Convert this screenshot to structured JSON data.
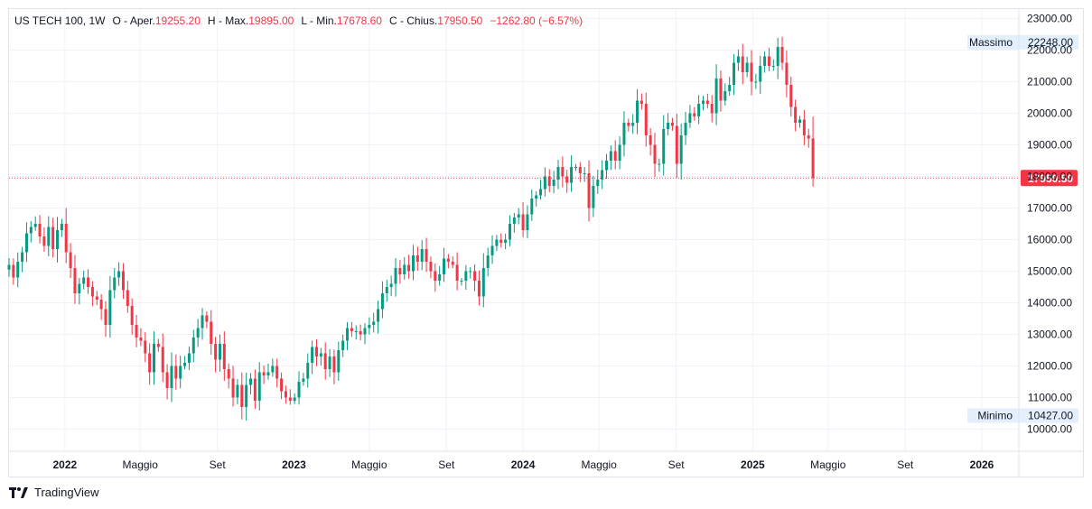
{
  "header": {
    "symbol": "US TECH 100, 1W",
    "open_label": "O - Aper.",
    "open_value": "19255.20",
    "high_label": "H - Max.",
    "high_value": "19895.00",
    "low_label": "L - Min.",
    "low_value": "17678.60",
    "close_label": "C - Chius.",
    "close_value": "17950.50",
    "change": "−1262.80 (−6.57%)"
  },
  "footer": {
    "brand": "TradingView"
  },
  "colors": {
    "up": "#089981",
    "down": "#f23645",
    "grid": "#f0f3fa",
    "label_bg": "#e3effd"
  },
  "chart_data": {
    "type": "candlestick",
    "ylim": [
      9300,
      23300
    ],
    "y_ticks": [
      "23000.00",
      "22000.00",
      "21000.00",
      "20000.00",
      "19000.00",
      "18000.00",
      "17000.00",
      "16000.00",
      "15000.00",
      "14000.00",
      "13000.00",
      "12000.00",
      "11000.00",
      "10000.00"
    ],
    "x_ticks": [
      {
        "label": "2022",
        "date": "2022-01-01",
        "bold": true
      },
      {
        "label": "Maggio",
        "date": "2022-05-01",
        "bold": false
      },
      {
        "label": "Set",
        "date": "2022-09-01",
        "bold": false
      },
      {
        "label": "2023",
        "date": "2023-01-01",
        "bold": true
      },
      {
        "label": "Maggio",
        "date": "2023-05-01",
        "bold": false
      },
      {
        "label": "Set",
        "date": "2023-09-01",
        "bold": false
      },
      {
        "label": "2024",
        "date": "2024-01-01",
        "bold": true
      },
      {
        "label": "Maggio",
        "date": "2024-05-01",
        "bold": false
      },
      {
        "label": "Set",
        "date": "2024-09-01",
        "bold": false
      },
      {
        "label": "2025",
        "date": "2025-01-01",
        "bold": true
      },
      {
        "label": "Maggio",
        "date": "2025-05-01",
        "bold": false
      },
      {
        "label": "Set",
        "date": "2025-09-01",
        "bold": false
      },
      {
        "label": "2026",
        "date": "2026-01-01",
        "bold": true
      }
    ],
    "last_price": {
      "value": 17950.5,
      "label": "17950.50"
    },
    "max_marker": {
      "label": "Massimo",
      "value_label": "22248.00",
      "value": 22248
    },
    "min_marker": {
      "label": "Minimo",
      "value_label": "10427.00",
      "value": 10427
    },
    "series_weekly_close": [
      {
        "date": "2021-10-04",
        "close": 15200
      },
      {
        "date": "2021-10-11",
        "close": 14800
      },
      {
        "date": "2021-10-18",
        "close": 15300
      },
      {
        "date": "2021-10-25",
        "close": 15600
      },
      {
        "date": "2021-11-01",
        "close": 16200
      },
      {
        "date": "2021-11-08",
        "close": 16400
      },
      {
        "date": "2021-11-15",
        "close": 16500
      },
      {
        "date": "2021-11-22",
        "close": 16100
      },
      {
        "date": "2021-11-29",
        "close": 15800
      },
      {
        "date": "2021-12-06",
        "close": 16400
      },
      {
        "date": "2021-12-13",
        "close": 15700
      },
      {
        "date": "2021-12-20",
        "close": 16300
      },
      {
        "date": "2021-12-27",
        "close": 16500
      },
      {
        "date": "2022-01-03",
        "close": 15600
      },
      {
        "date": "2022-01-10",
        "close": 15100
      },
      {
        "date": "2022-01-17",
        "close": 14300
      },
      {
        "date": "2022-01-24",
        "close": 14600
      },
      {
        "date": "2022-01-31",
        "close": 14800
      },
      {
        "date": "2022-02-07",
        "close": 14500
      },
      {
        "date": "2022-02-14",
        "close": 14200
      },
      {
        "date": "2022-02-21",
        "close": 14100
      },
      {
        "date": "2022-02-28",
        "close": 13800
      },
      {
        "date": "2022-03-07",
        "close": 13300
      },
      {
        "date": "2022-03-14",
        "close": 14400
      },
      {
        "date": "2022-03-21",
        "close": 14800
      },
      {
        "date": "2022-03-28",
        "close": 15000
      },
      {
        "date": "2022-04-04",
        "close": 14400
      },
      {
        "date": "2022-04-11",
        "close": 13900
      },
      {
        "date": "2022-04-18",
        "close": 13300
      },
      {
        "date": "2022-04-25",
        "close": 12900
      },
      {
        "date": "2022-05-02",
        "close": 12800
      },
      {
        "date": "2022-05-09",
        "close": 12400
      },
      {
        "date": "2022-05-16",
        "close": 11800
      },
      {
        "date": "2022-05-23",
        "close": 12700
      },
      {
        "date": "2022-05-30",
        "close": 12600
      },
      {
        "date": "2022-06-06",
        "close": 11800
      },
      {
        "date": "2022-06-13",
        "close": 11300
      },
      {
        "date": "2022-06-20",
        "close": 12000
      },
      {
        "date": "2022-06-27",
        "close": 11600
      },
      {
        "date": "2022-07-04",
        "close": 12000
      },
      {
        "date": "2022-07-11",
        "close": 12100
      },
      {
        "date": "2022-07-18",
        "close": 12400
      },
      {
        "date": "2022-07-25",
        "close": 12900
      },
      {
        "date": "2022-08-01",
        "close": 13200
      },
      {
        "date": "2022-08-08",
        "close": 13600
      },
      {
        "date": "2022-08-15",
        "close": 13400
      },
      {
        "date": "2022-08-22",
        "close": 12700
      },
      {
        "date": "2022-08-29",
        "close": 12200
      },
      {
        "date": "2022-09-05",
        "close": 12700
      },
      {
        "date": "2022-09-12",
        "close": 11900
      },
      {
        "date": "2022-09-19",
        "close": 11600
      },
      {
        "date": "2022-09-26",
        "close": 11000
      },
      {
        "date": "2022-10-03",
        "close": 11400
      },
      {
        "date": "2022-10-10",
        "close": 10700
      },
      {
        "date": "2022-10-17",
        "close": 11400
      },
      {
        "date": "2022-10-24",
        "close": 11600
      },
      {
        "date": "2022-10-31",
        "close": 10900
      },
      {
        "date": "2022-11-07",
        "close": 11800
      },
      {
        "date": "2022-11-14",
        "close": 11700
      },
      {
        "date": "2022-11-21",
        "close": 11800
      },
      {
        "date": "2022-11-28",
        "close": 12000
      },
      {
        "date": "2022-12-05",
        "close": 11600
      },
      {
        "date": "2022-12-12",
        "close": 11200
      },
      {
        "date": "2022-12-19",
        "close": 11000
      },
      {
        "date": "2022-12-26",
        "close": 10900
      },
      {
        "date": "2023-01-02",
        "close": 11000
      },
      {
        "date": "2023-01-09",
        "close": 11500
      },
      {
        "date": "2023-01-16",
        "close": 11600
      },
      {
        "date": "2023-01-23",
        "close": 12100
      },
      {
        "date": "2023-01-30",
        "close": 12600
      },
      {
        "date": "2023-02-06",
        "close": 12300
      },
      {
        "date": "2023-02-13",
        "close": 12400
      },
      {
        "date": "2023-02-20",
        "close": 11900
      },
      {
        "date": "2023-02-27",
        "close": 12300
      },
      {
        "date": "2023-03-06",
        "close": 11800
      },
      {
        "date": "2023-03-13",
        "close": 12500
      },
      {
        "date": "2023-03-20",
        "close": 12800
      },
      {
        "date": "2023-03-27",
        "close": 13200
      },
      {
        "date": "2023-04-03",
        "close": 13100
      },
      {
        "date": "2023-04-10",
        "close": 13100
      },
      {
        "date": "2023-04-17",
        "close": 13000
      },
      {
        "date": "2023-04-24",
        "close": 13200
      },
      {
        "date": "2023-05-01",
        "close": 13300
      },
      {
        "date": "2023-05-08",
        "close": 13400
      },
      {
        "date": "2023-05-15",
        "close": 13800
      },
      {
        "date": "2023-05-22",
        "close": 14300
      },
      {
        "date": "2023-05-29",
        "close": 14500
      },
      {
        "date": "2023-06-05",
        "close": 14600
      },
      {
        "date": "2023-06-12",
        "close": 15100
      },
      {
        "date": "2023-06-19",
        "close": 14900
      },
      {
        "date": "2023-06-26",
        "close": 15200
      },
      {
        "date": "2023-07-03",
        "close": 15000
      },
      {
        "date": "2023-07-10",
        "close": 15500
      },
      {
        "date": "2023-07-17",
        "close": 15300
      },
      {
        "date": "2023-07-24",
        "close": 15700
      },
      {
        "date": "2023-07-31",
        "close": 15300
      },
      {
        "date": "2023-08-07",
        "close": 15000
      },
      {
        "date": "2023-08-14",
        "close": 14700
      },
      {
        "date": "2023-08-21",
        "close": 14900
      },
      {
        "date": "2023-08-28",
        "close": 15400
      },
      {
        "date": "2023-09-04",
        "close": 15300
      },
      {
        "date": "2023-09-11",
        "close": 15200
      },
      {
        "date": "2023-09-18",
        "close": 14700
      },
      {
        "date": "2023-09-25",
        "close": 14700
      },
      {
        "date": "2023-10-02",
        "close": 15000
      },
      {
        "date": "2023-10-09",
        "close": 15000
      },
      {
        "date": "2023-10-16",
        "close": 14700
      },
      {
        "date": "2023-10-23",
        "close": 14200
      },
      {
        "date": "2023-10-30",
        "close": 15100
      },
      {
        "date": "2023-11-06",
        "close": 15500
      },
      {
        "date": "2023-11-13",
        "close": 15800
      },
      {
        "date": "2023-11-20",
        "close": 16000
      },
      {
        "date": "2023-11-27",
        "close": 15900
      },
      {
        "date": "2023-12-04",
        "close": 16000
      },
      {
        "date": "2023-12-11",
        "close": 16500
      },
      {
        "date": "2023-12-18",
        "close": 16700
      },
      {
        "date": "2023-12-25",
        "close": 16800
      },
      {
        "date": "2024-01-01",
        "close": 16300
      },
      {
        "date": "2024-01-08",
        "close": 16800
      },
      {
        "date": "2024-01-15",
        "close": 17300
      },
      {
        "date": "2024-01-22",
        "close": 17400
      },
      {
        "date": "2024-01-29",
        "close": 17600
      },
      {
        "date": "2024-02-05",
        "close": 18000
      },
      {
        "date": "2024-02-12",
        "close": 17700
      },
      {
        "date": "2024-02-19",
        "close": 17900
      },
      {
        "date": "2024-02-26",
        "close": 18300
      },
      {
        "date": "2024-03-04",
        "close": 18000
      },
      {
        "date": "2024-03-11",
        "close": 17800
      },
      {
        "date": "2024-03-18",
        "close": 18300
      },
      {
        "date": "2024-03-25",
        "close": 18300
      },
      {
        "date": "2024-04-01",
        "close": 18100
      },
      {
        "date": "2024-04-08",
        "close": 18100
      },
      {
        "date": "2024-04-15",
        "close": 17000
      },
      {
        "date": "2024-04-22",
        "close": 17700
      },
      {
        "date": "2024-04-29",
        "close": 17900
      },
      {
        "date": "2024-05-06",
        "close": 18200
      },
      {
        "date": "2024-05-13",
        "close": 18500
      },
      {
        "date": "2024-05-20",
        "close": 18800
      },
      {
        "date": "2024-05-27",
        "close": 18500
      },
      {
        "date": "2024-06-03",
        "close": 19000
      },
      {
        "date": "2024-06-10",
        "close": 19700
      },
      {
        "date": "2024-06-17",
        "close": 19600
      },
      {
        "date": "2024-06-24",
        "close": 19700
      },
      {
        "date": "2024-07-01",
        "close": 20400
      },
      {
        "date": "2024-07-08",
        "close": 20300
      },
      {
        "date": "2024-07-15",
        "close": 19300
      },
      {
        "date": "2024-07-22",
        "close": 19000
      },
      {
        "date": "2024-07-29",
        "close": 18400
      },
      {
        "date": "2024-08-05",
        "close": 18400
      },
      {
        "date": "2024-08-12",
        "close": 19500
      },
      {
        "date": "2024-08-19",
        "close": 19700
      },
      {
        "date": "2024-08-26",
        "close": 19600
      },
      {
        "date": "2024-09-02",
        "close": 18400
      },
      {
        "date": "2024-09-09",
        "close": 19300
      },
      {
        "date": "2024-09-16",
        "close": 19700
      },
      {
        "date": "2024-09-23",
        "close": 20000
      },
      {
        "date": "2024-09-30",
        "close": 19900
      },
      {
        "date": "2024-10-07",
        "close": 20300
      },
      {
        "date": "2024-10-14",
        "close": 20400
      },
      {
        "date": "2024-10-21",
        "close": 20300
      },
      {
        "date": "2024-10-28",
        "close": 20000
      },
      {
        "date": "2024-11-04",
        "close": 21100
      },
      {
        "date": "2024-11-11",
        "close": 20400
      },
      {
        "date": "2024-11-18",
        "close": 20700
      },
      {
        "date": "2024-11-25",
        "close": 20900
      },
      {
        "date": "2024-12-02",
        "close": 21600
      },
      {
        "date": "2024-12-09",
        "close": 21800
      },
      {
        "date": "2024-12-16",
        "close": 21300
      },
      {
        "date": "2024-12-23",
        "close": 21600
      },
      {
        "date": "2024-12-30",
        "close": 21000
      },
      {
        "date": "2025-01-06",
        "close": 21000
      },
      {
        "date": "2025-01-13",
        "close": 21500
      },
      {
        "date": "2025-01-20",
        "close": 21800
      },
      {
        "date": "2025-01-27",
        "close": 21500
      },
      {
        "date": "2025-02-03",
        "close": 21500
      },
      {
        "date": "2025-02-10",
        "close": 22100
      },
      {
        "date": "2025-02-17",
        "close": 21600
      },
      {
        "date": "2025-02-24",
        "close": 20900
      },
      {
        "date": "2025-03-03",
        "close": 20200
      },
      {
        "date": "2025-03-10",
        "close": 19700
      },
      {
        "date": "2025-03-17",
        "close": 19800
      },
      {
        "date": "2025-03-24",
        "close": 19300
      },
      {
        "date": "2025-03-31",
        "close": 19200
      },
      {
        "date": "2025-04-07",
        "close": 17950.5
      }
    ]
  }
}
